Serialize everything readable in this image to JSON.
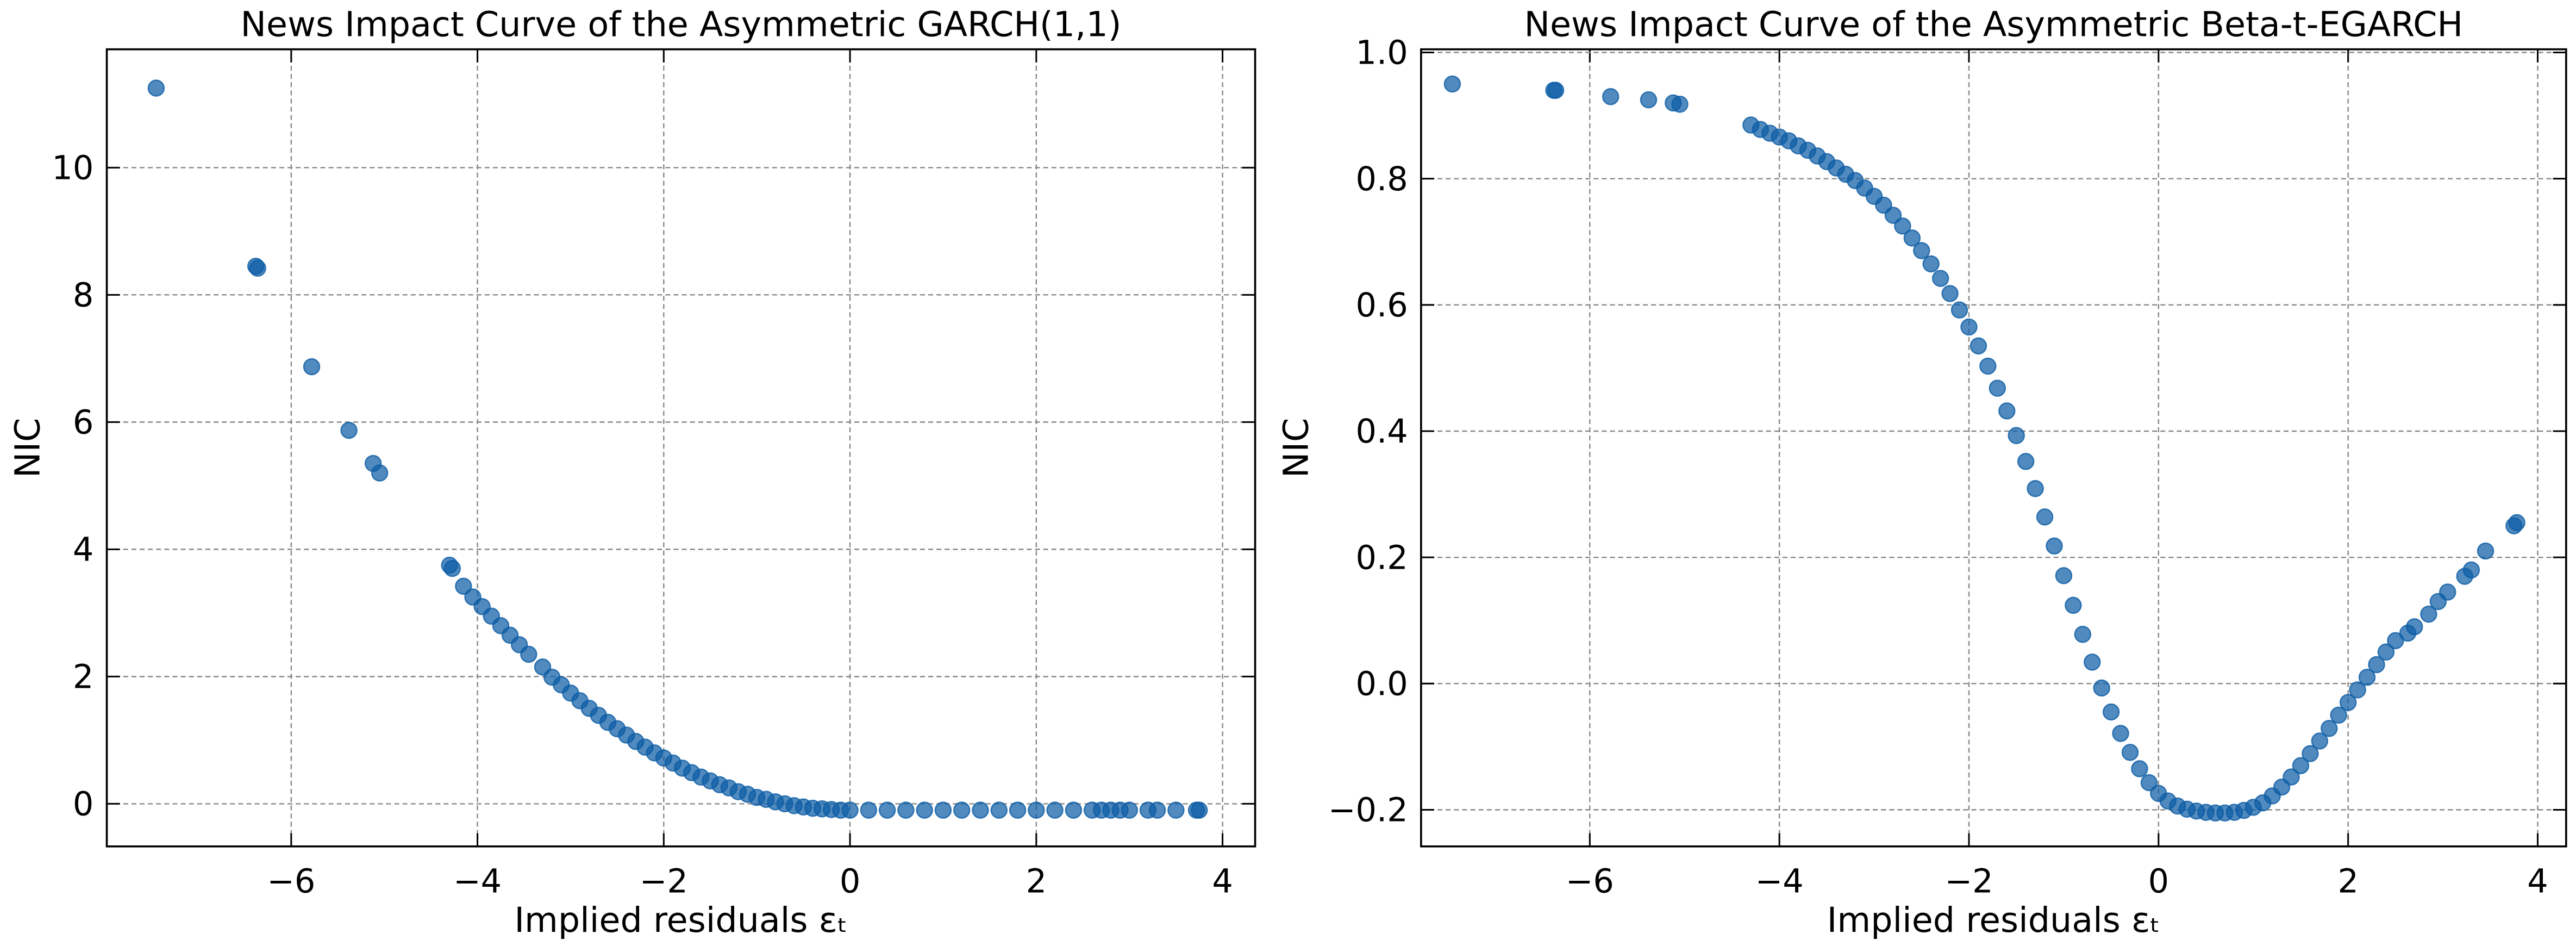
{
  "chart_data": [
    {
      "type": "scatter",
      "title": "News Impact Curve of the Asymmetric GARCH(1,1)",
      "xlabel": "Implied residuals εₜ",
      "ylabel": "NIC",
      "color": "#0C5DA5",
      "grid": true,
      "xlim": [
        -7.98,
        4.35
      ],
      "ylim": [
        -0.67,
        11.86
      ],
      "xticks": [
        {
          "value": -6,
          "label": "−6"
        },
        {
          "value": -4,
          "label": "−4"
        },
        {
          "value": -2,
          "label": "−2"
        },
        0,
        2,
        4
      ],
      "yticks": [
        0,
        2,
        4,
        6,
        8,
        10
      ],
      "x": [
        -7.45,
        -6.38,
        -6.36,
        -5.78,
        -5.38,
        -5.12,
        -5.05,
        -4.3,
        -4.27,
        -4.15,
        -4.05,
        -3.95,
        -3.85,
        -3.75,
        -3.65,
        -3.55,
        -3.45,
        -3.3,
        -3.2,
        -3.1,
        -3.0,
        -2.9,
        -2.8,
        -2.7,
        -2.6,
        -2.5,
        -2.4,
        -2.3,
        -2.2,
        -2.1,
        -2.0,
        -1.9,
        -1.8,
        -1.7,
        -1.6,
        -1.5,
        -1.4,
        -1.3,
        -1.2,
        -1.1,
        -1.0,
        -0.9,
        -0.8,
        -0.7,
        -0.6,
        -0.5,
        -0.4,
        -0.3,
        -0.2,
        -0.1,
        0,
        0.2,
        0.4,
        0.6,
        0.8,
        1.0,
        1.2,
        1.4,
        1.6,
        1.8,
        2.0,
        2.2,
        2.4,
        2.6,
        2.7,
        2.8,
        2.9,
        3.0,
        3.2,
        3.3,
        3.5,
        3.72,
        3.75
      ],
      "values": [
        11.25,
        8.45,
        8.42,
        6.87,
        5.87,
        5.35,
        5.2,
        3.75,
        3.7,
        3.42,
        3.25,
        3.1,
        2.95,
        2.8,
        2.65,
        2.5,
        2.35,
        2.15,
        1.99,
        1.87,
        1.74,
        1.62,
        1.5,
        1.39,
        1.28,
        1.18,
        1.08,
        0.98,
        0.89,
        0.8,
        0.72,
        0.64,
        0.56,
        0.49,
        0.42,
        0.36,
        0.3,
        0.25,
        0.19,
        0.15,
        0.1,
        0.07,
        0.03,
        0.0,
        -0.03,
        -0.05,
        -0.07,
        -0.08,
        -0.09,
        -0.1,
        -0.1,
        -0.1,
        -0.1,
        -0.1,
        -0.1,
        -0.1,
        -0.1,
        -0.1,
        -0.1,
        -0.1,
        -0.1,
        -0.1,
        -0.1,
        -0.1,
        -0.1,
        -0.1,
        -0.1,
        -0.1,
        -0.1,
        -0.1,
        -0.1,
        -0.1,
        -0.1
      ]
    },
    {
      "type": "scatter",
      "title": "News Impact Curve of the Asymmetric Beta-t-EGARCH",
      "xlabel": "Implied residuals εₜ",
      "ylabel": "NIC",
      "color": "#0C5DA5",
      "grid": true,
      "xlim": [
        -7.78,
        4.3
      ],
      "ylim": [
        -0.258,
        1.005
      ],
      "xticks": [
        {
          "value": -6,
          "label": "−6"
        },
        {
          "value": -4,
          "label": "−4"
        },
        {
          "value": -2,
          "label": "−2"
        },
        0,
        2,
        4
      ],
      "yticks": [
        {
          "value": -0.2,
          "label": "−0.2"
        },
        {
          "value": 0,
          "label": "0.0"
        },
        0.2,
        0.4,
        0.6,
        0.8,
        {
          "value": 1,
          "label": "1.0"
        }
      ],
      "x": [
        -7.45,
        -6.38,
        -6.36,
        -5.78,
        -5.38,
        -5.12,
        -5.05,
        -4.3,
        -4.2,
        -4.1,
        -4.0,
        -3.9,
        -3.8,
        -3.7,
        -3.6,
        -3.5,
        -3.4,
        -3.3,
        -3.2,
        -3.1,
        -3.0,
        -2.9,
        -2.8,
        -2.7,
        -2.6,
        -2.5,
        -2.4,
        -2.3,
        -2.2,
        -2.1,
        -2.0,
        -1.9,
        -1.8,
        -1.7,
        -1.6,
        -1.5,
        -1.4,
        -1.3,
        -1.2,
        -1.1,
        -1.0,
        -0.9,
        -0.8,
        -0.7,
        -0.6,
        -0.5,
        -0.4,
        -0.3,
        -0.2,
        -0.1,
        0,
        0.1,
        0.2,
        0.3,
        0.4,
        0.5,
        0.6,
        0.7,
        0.8,
        0.9,
        1.0,
        1.1,
        1.2,
        1.3,
        1.4,
        1.5,
        1.6,
        1.7,
        1.8,
        1.9,
        2.0,
        2.1,
        2.2,
        2.3,
        2.4,
        2.5,
        2.63,
        2.7,
        2.85,
        2.95,
        3.05,
        3.23,
        3.3,
        3.45,
        3.75,
        3.78
      ],
      "values": [
        0.95,
        0.94,
        0.94,
        0.93,
        0.925,
        0.92,
        0.918,
        0.885,
        0.878,
        0.872,
        0.866,
        0.86,
        0.852,
        0.845,
        0.836,
        0.827,
        0.817,
        0.807,
        0.797,
        0.785,
        0.772,
        0.758,
        0.742,
        0.725,
        0.706,
        0.686,
        0.665,
        0.642,
        0.618,
        0.592,
        0.565,
        0.535,
        0.503,
        0.468,
        0.432,
        0.393,
        0.352,
        0.309,
        0.264,
        0.218,
        0.171,
        0.124,
        0.078,
        0.034,
        -0.007,
        -0.045,
        -0.079,
        -0.109,
        -0.135,
        -0.157,
        -0.174,
        -0.186,
        -0.194,
        -0.199,
        -0.202,
        -0.204,
        -0.205,
        -0.205,
        -0.204,
        -0.201,
        -0.196,
        -0.189,
        -0.178,
        -0.164,
        -0.148,
        -0.13,
        -0.111,
        -0.091,
        -0.071,
        -0.05,
        -0.03,
        -0.01,
        0.01,
        0.03,
        0.05,
        0.068,
        0.08,
        0.09,
        0.11,
        0.13,
        0.145,
        0.17,
        0.18,
        0.21,
        0.25,
        0.255
      ]
    }
  ]
}
